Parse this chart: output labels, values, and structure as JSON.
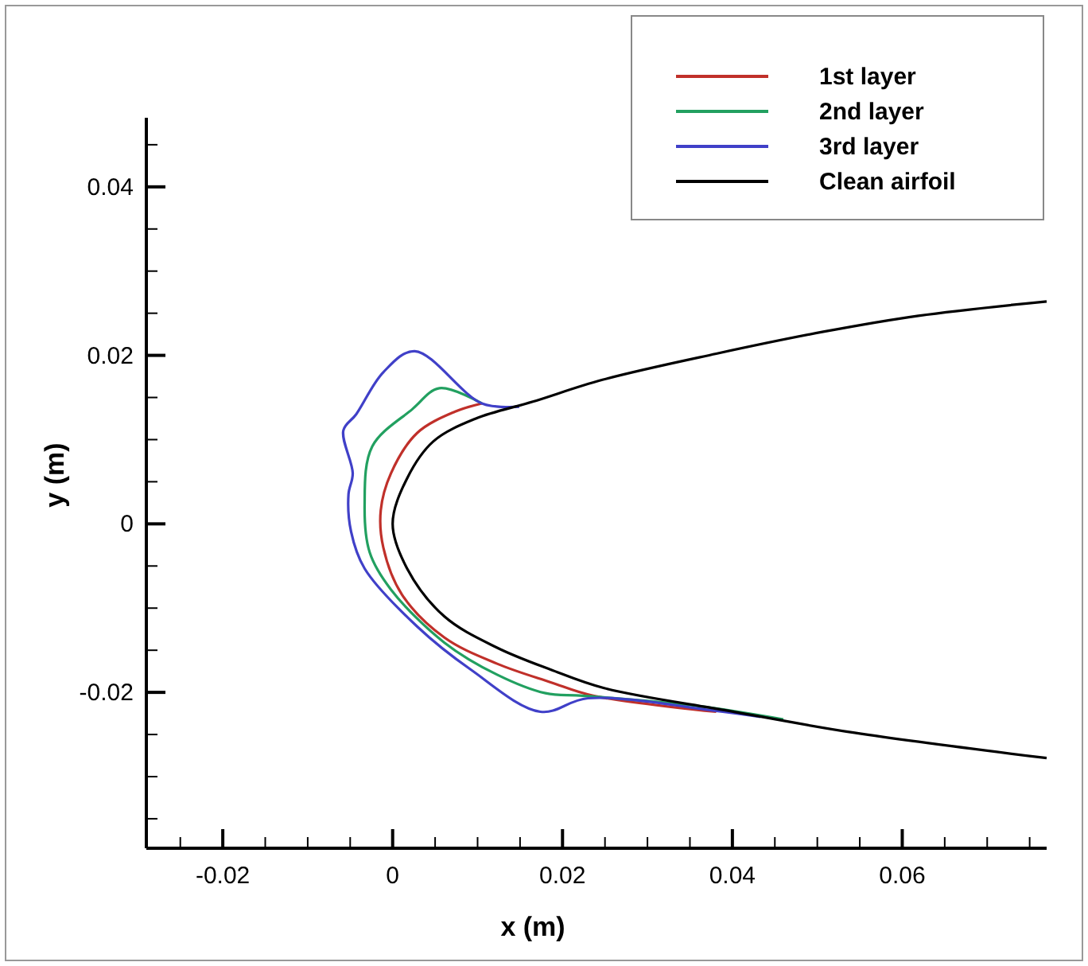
{
  "chart_data": {
    "type": "line",
    "xlabel": "x (m)",
    "ylabel": "y (m)",
    "xlim": [
      -0.029,
      0.077
    ],
    "ylim": [
      -0.0385,
      0.0482
    ],
    "xticks": [
      {
        "value": -0.025,
        "label": null
      },
      -0.02,
      {
        "value": -0.015,
        "label": null
      },
      {
        "value": -0.01,
        "label": null
      },
      {
        "value": -0.005,
        "label": null
      },
      0,
      {
        "value": 0.005,
        "label": null
      },
      {
        "value": 0.01,
        "label": null
      },
      {
        "value": 0.015,
        "label": null
      },
      0.02,
      {
        "value": 0.025,
        "label": null
      },
      {
        "value": 0.03,
        "label": null
      },
      {
        "value": 0.035,
        "label": null
      },
      0.04,
      {
        "value": 0.045,
        "label": null
      },
      {
        "value": 0.05,
        "label": null
      },
      {
        "value": 0.055,
        "label": null
      },
      0.06,
      {
        "value": 0.065,
        "label": null
      },
      {
        "value": 0.07,
        "label": null
      },
      {
        "value": 0.075,
        "label": null
      }
    ],
    "yticks": [
      {
        "value": -0.035,
        "label": null
      },
      {
        "value": -0.03,
        "label": null
      },
      {
        "value": -0.025,
        "label": null
      },
      -0.02,
      {
        "value": -0.015,
        "label": null
      },
      {
        "value": -0.01,
        "label": null
      },
      {
        "value": -0.005,
        "label": null
      },
      0,
      {
        "value": 0.005,
        "label": null
      },
      {
        "value": 0.01,
        "label": null
      },
      {
        "value": 0.015,
        "label": null
      },
      0.02,
      {
        "value": 0.025,
        "label": null
      },
      {
        "value": 0.03,
        "label": null
      },
      {
        "value": 0.035,
        "label": null
      },
      0.04,
      {
        "value": 0.045,
        "label": null
      }
    ],
    "grid": false,
    "legend": "top right",
    "marker": "none",
    "line_style": "solid",
    "series": [
      {
        "name": "1st layer",
        "color": "#c0302a",
        "x": [
          0.0105,
          0.0073,
          0.0029,
          -0.0002,
          -0.0014,
          -0.0011,
          0.0011,
          0.0061,
          0.0123,
          0.0186,
          0.0236,
          0.0381
        ],
        "values": [
          0.0143,
          0.0133,
          0.0108,
          0.006,
          0.0016,
          -0.0028,
          -0.0084,
          -0.0135,
          -0.0166,
          -0.0188,
          -0.0204,
          -0.0223
        ]
      },
      {
        "name": "2nd layer",
        "color": "#22a060",
        "x": [
          0.0105,
          0.0055,
          0.0023,
          -0.0024,
          -0.0033,
          -0.0027,
          -0.0002,
          0.0061,
          0.0123,
          0.018,
          0.0224,
          0.0358,
          0.046
        ],
        "values": [
          0.0143,
          0.0161,
          0.0136,
          0.0092,
          0.0023,
          -0.0034,
          -0.0078,
          -0.0141,
          -0.0179,
          -0.0201,
          -0.0204,
          -0.0216,
          -0.0232
        ]
      },
      {
        "name": "3rd layer",
        "color": "#4040c8",
        "x": [
          0.0149,
          0.0105,
          0.0026,
          -0.0011,
          -0.0043,
          -0.0058,
          -0.0047,
          -0.0052,
          -0.0049,
          -0.0033,
          0.0029,
          0.0092,
          0.0174,
          0.023,
          0.0381,
          0.0433
        ],
        "values": [
          0.0139,
          0.0143,
          0.0205,
          0.018,
          0.013,
          0.0111,
          0.006,
          0.0035,
          -0.0009,
          -0.0053,
          -0.0122,
          -0.0173,
          -0.0223,
          -0.0207,
          -0.0222,
          -0.0229
        ]
      },
      {
        "name": "Clean airfoil",
        "color": "#000000",
        "x": [
          0.077,
          0.0619,
          0.0507,
          0.0381,
          0.0247,
          0.0165,
          0.0098,
          0.0048,
          0.0017,
          0,
          0.0017,
          0.0061,
          0.0123,
          0.0186,
          0.0249,
          0.0396,
          0.0544,
          0.077
        ],
        "values": [
          0.0264,
          0.0247,
          0.0228,
          0.0202,
          0.0171,
          0.0145,
          0.0125,
          0.0098,
          0.0054,
          0,
          -0.0053,
          -0.011,
          -0.0147,
          -0.0173,
          -0.0195,
          -0.0222,
          -0.0248,
          -0.0278
        ]
      }
    ]
  }
}
